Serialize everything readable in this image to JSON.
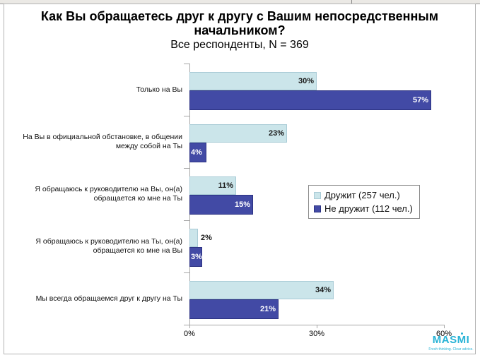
{
  "slide": {
    "title": "Как Вы обращаетесь друг к другу с Вашим непосредственным начальником?",
    "subtitle": "Все респонденты, N = 369"
  },
  "chart_data": {
    "type": "bar",
    "orientation": "horizontal",
    "title": "Как Вы обращаетесь друг к другу с Вашим непосредственным начальником?",
    "subtitle": "Все респонденты, N = 369",
    "categories": [
      "Только на Вы",
      "На Вы в официальной обстановке, в общении между собой на Ты",
      "Я обращаюсь к руководителю на Вы, он(а) обращается ко мне на Ты",
      "Я обращаюсь к руководителю на Ты, он(а) обращается ко мне на Вы",
      "Мы всегда обращаемся друг к другу на Ты"
    ],
    "series": [
      {
        "name": "Дружит (257 чел.)",
        "values": [
          30,
          23,
          11,
          2,
          34
        ],
        "fill_color": "#cbe5ea",
        "border_color": "#a9cbd6",
        "label_color": "#1a1a1a"
      },
      {
        "name": "Не дружит (112 чел.)",
        "values": [
          57,
          4,
          15,
          3,
          21
        ],
        "fill_color": "#424aa5",
        "border_color": "#2c3282",
        "label_color": "#ffffff"
      }
    ],
    "value_label_format": "{v}%",
    "xlim": [
      0,
      60
    ],
    "x_ticks": [
      "0%",
      "30%",
      "60%"
    ],
    "grid": false,
    "legend_position": "middle-right"
  },
  "branding": {
    "logo": "MASMI",
    "tagline": "Fresh thinking. Clear advice.",
    "color": "#28b3d6"
  }
}
